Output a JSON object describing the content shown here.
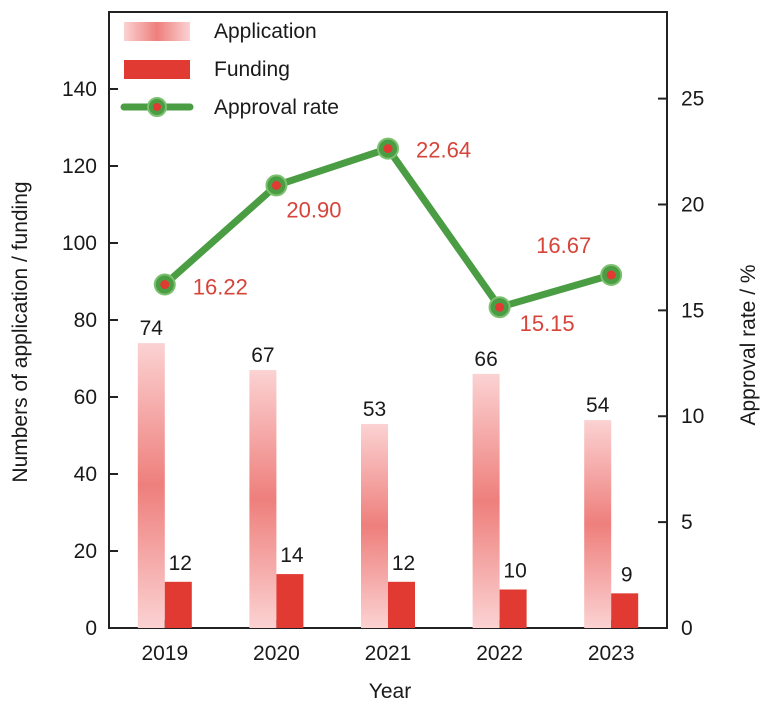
{
  "colors": {
    "application_light": "#fbd2d2",
    "application_mid": "#ee7f7c",
    "funding": "#e03a32",
    "rate_line": "#4a9d43",
    "rate_marker": "#e03a32",
    "rate_label": "#d6443a"
  },
  "chart_data": {
    "type": "bar",
    "categories": [
      "2019",
      "2020",
      "2021",
      "2022",
      "2023"
    ],
    "series": [
      {
        "name": "Application",
        "type": "bar",
        "axis": "left",
        "values": [
          74,
          67,
          53,
          66,
          54
        ]
      },
      {
        "name": "Funding",
        "type": "bar",
        "axis": "left",
        "values": [
          12,
          14,
          12,
          10,
          9
        ]
      },
      {
        "name": "Approval rate",
        "type": "line",
        "axis": "right",
        "values": [
          16.22,
          20.9,
          22.64,
          15.15,
          16.67
        ]
      }
    ],
    "bar_labels": {
      "application": [
        "74",
        "67",
        "53",
        "66",
        "54"
      ],
      "funding": [
        "12",
        "14",
        "12",
        "10",
        "9"
      ]
    },
    "rate_labels": [
      "16.22",
      "20.90",
      "22.64",
      "15.15",
      "16.67"
    ],
    "xlabel": "Year",
    "ylabel": "Numbers of application / funding",
    "y2label": "Approval rate / %",
    "ylim": [
      0,
      160
    ],
    "y2lim": [
      0,
      29.09
    ],
    "yticks": [
      "0",
      "20",
      "40",
      "60",
      "80",
      "100",
      "120",
      "140"
    ],
    "y2ticks": [
      "0",
      "5",
      "10",
      "15",
      "20",
      "25"
    ],
    "legend": [
      "Application",
      "Funding",
      "Approval rate"
    ],
    "legend_position": "top-left",
    "grid": false
  }
}
